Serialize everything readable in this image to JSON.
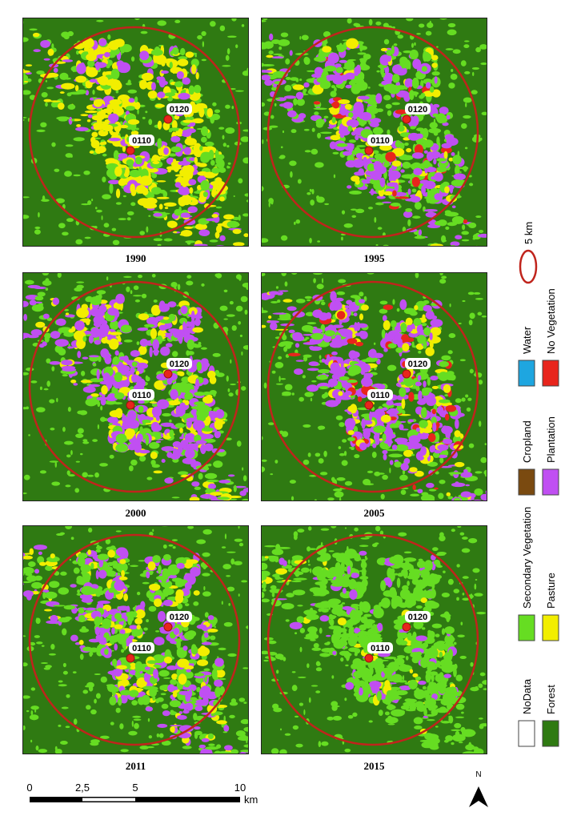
{
  "panels": [
    {
      "year": "1990",
      "points": [
        "0120",
        "0110"
      ]
    },
    {
      "year": "1995",
      "points": [
        "0120",
        "0110"
      ]
    },
    {
      "year": "2000",
      "points": [
        "0120",
        "0110"
      ]
    },
    {
      "year": "2005",
      "points": [
        "0120",
        "0110"
      ]
    },
    {
      "year": "2011",
      "points": [
        "0120",
        "0110"
      ]
    },
    {
      "year": "2015",
      "points": [
        "0120",
        "0110"
      ]
    }
  ],
  "legend": {
    "circle": "5 km",
    "items": [
      {
        "label": "Water"
      },
      {
        "label": "No Vegetation"
      },
      {
        "label": "Cropland"
      },
      {
        "label": "Plantation"
      },
      {
        "label": "Secondary Vegetation"
      },
      {
        "label": "Pasture"
      },
      {
        "label": "NoData"
      },
      {
        "label": "Forest"
      }
    ]
  },
  "scale_bar": {
    "ticks": [
      "0",
      "2,5",
      "5",
      "10"
    ],
    "unit": "km"
  },
  "north": "N"
}
